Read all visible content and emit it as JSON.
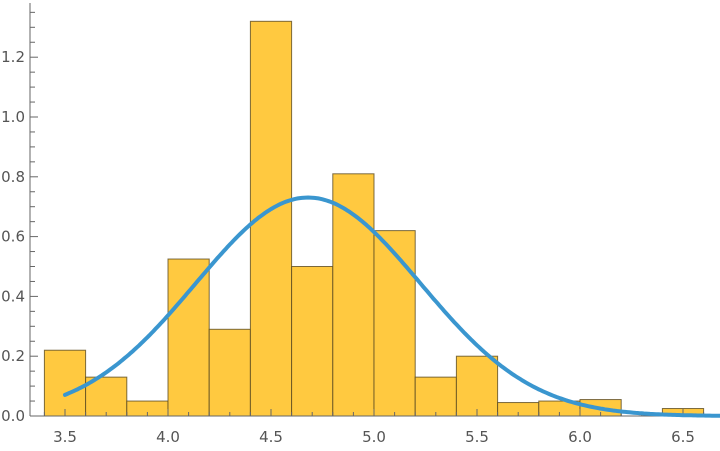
{
  "chart_data": {
    "type": "bar",
    "title": "",
    "xlabel": "",
    "ylabel": "",
    "xlim": [
      3.4,
      6.7
    ],
    "ylim": [
      0,
      1.38
    ],
    "grid": false,
    "bin_width": 0.2,
    "bins": [
      {
        "start": 3.4,
        "end": 3.6,
        "value": 0.22
      },
      {
        "start": 3.6,
        "end": 3.8,
        "value": 0.13
      },
      {
        "start": 3.8,
        "end": 4.0,
        "value": 0.05
      },
      {
        "start": 4.0,
        "end": 4.2,
        "value": 0.525
      },
      {
        "start": 4.2,
        "end": 4.4,
        "value": 0.29
      },
      {
        "start": 4.4,
        "end": 4.6,
        "value": 1.32
      },
      {
        "start": 4.6,
        "end": 4.8,
        "value": 0.5
      },
      {
        "start": 4.8,
        "end": 5.0,
        "value": 0.81
      },
      {
        "start": 5.0,
        "end": 5.2,
        "value": 0.62
      },
      {
        "start": 5.2,
        "end": 5.4,
        "value": 0.13
      },
      {
        "start": 5.4,
        "end": 5.6,
        "value": 0.2
      },
      {
        "start": 5.6,
        "end": 5.8,
        "value": 0.045
      },
      {
        "start": 5.8,
        "end": 6.0,
        "value": 0.05
      },
      {
        "start": 6.0,
        "end": 6.2,
        "value": 0.055
      },
      {
        "start": 6.2,
        "end": 6.4,
        "value": 0.0
      },
      {
        "start": 6.4,
        "end": 6.6,
        "value": 0.025
      }
    ],
    "curve": {
      "type": "normal-pdf",
      "mean": 4.68,
      "sd": 0.546,
      "x_range": [
        3.5,
        6.7
      ]
    },
    "x_ticks": [
      "3.5",
      "4.0",
      "4.5",
      "5.0",
      "5.5",
      "6.0",
      "6.5"
    ],
    "y_ticks": [
      "0.0",
      "0.2",
      "0.4",
      "0.6",
      "0.8",
      "1.0",
      "1.2"
    ],
    "colors": {
      "bar_fill": "#FFC940",
      "bar_edge": "#5a4a20",
      "curve": "#3A96CF",
      "axis": "#666666"
    }
  }
}
